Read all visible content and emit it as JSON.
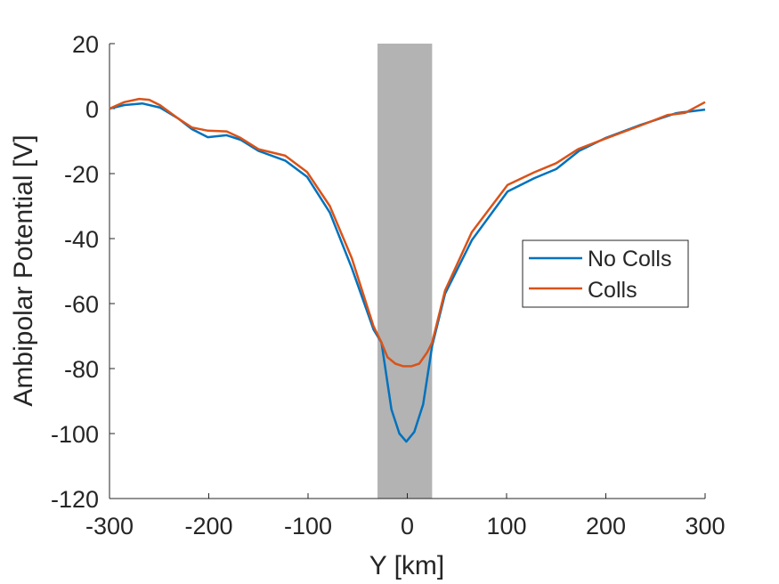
{
  "chart_data": {
    "type": "line",
    "title": "",
    "xlabel": "Y [km]",
    "ylabel": "Ambipolar Potential [V]",
    "xlim": [
      -300,
      300
    ],
    "ylim": [
      -120,
      20
    ],
    "xticks": [
      -300,
      -200,
      -100,
      0,
      100,
      200,
      300
    ],
    "yticks": [
      -120,
      -100,
      -80,
      -60,
      -40,
      -20,
      0,
      20
    ],
    "grid": false,
    "legend_placement": "right",
    "shaded_region": {
      "x": [
        -30,
        25
      ],
      "color": "#b3b3b3"
    },
    "series": [
      {
        "name": "No Colls",
        "color": "#0072bd",
        "x": [
          -300,
          -285,
          -267,
          -249,
          -231,
          -217,
          -201,
          -182,
          -168,
          -150,
          -123,
          -101,
          -78,
          -56,
          -34,
          -26,
          -16,
          -8,
          -1,
          7,
          16,
          25,
          38,
          65,
          101,
          128,
          150,
          173,
          200,
          235,
          271,
          300
        ],
        "y": [
          0,
          1.1,
          1.6,
          0.3,
          -3,
          -6.3,
          -8.8,
          -8.2,
          -9.6,
          -13,
          -16,
          -21,
          -32,
          -49,
          -68,
          -72,
          -92.6,
          -100,
          -102.5,
          -99.5,
          -91,
          -73,
          -57,
          -40.5,
          -25.5,
          -21.4,
          -18.6,
          -13,
          -9,
          -5,
          -1.4,
          -0.3
        ]
      },
      {
        "name": "Colls",
        "color": "#d95319",
        "x": [
          -300,
          -285,
          -270,
          -260,
          -249,
          -231,
          -217,
          -201,
          -182,
          -168,
          -150,
          -123,
          -101,
          -78,
          -56,
          -34,
          -26,
          -20,
          -12,
          -4,
          4,
          12,
          20,
          25,
          38,
          65,
          101,
          128,
          150,
          172,
          199,
          235,
          262,
          280,
          300
        ],
        "y": [
          0,
          2,
          3,
          2.7,
          1,
          -3,
          -5.8,
          -6.8,
          -7,
          -9,
          -12.5,
          -14.5,
          -19.5,
          -30,
          -46,
          -67,
          -72,
          -76.5,
          -78.5,
          -79.3,
          -79.3,
          -78.5,
          -75,
          -72,
          -56,
          -38,
          -23.5,
          -19.6,
          -16.8,
          -12.5,
          -9.3,
          -5.2,
          -2,
          -1.3,
          2
        ]
      }
    ]
  }
}
